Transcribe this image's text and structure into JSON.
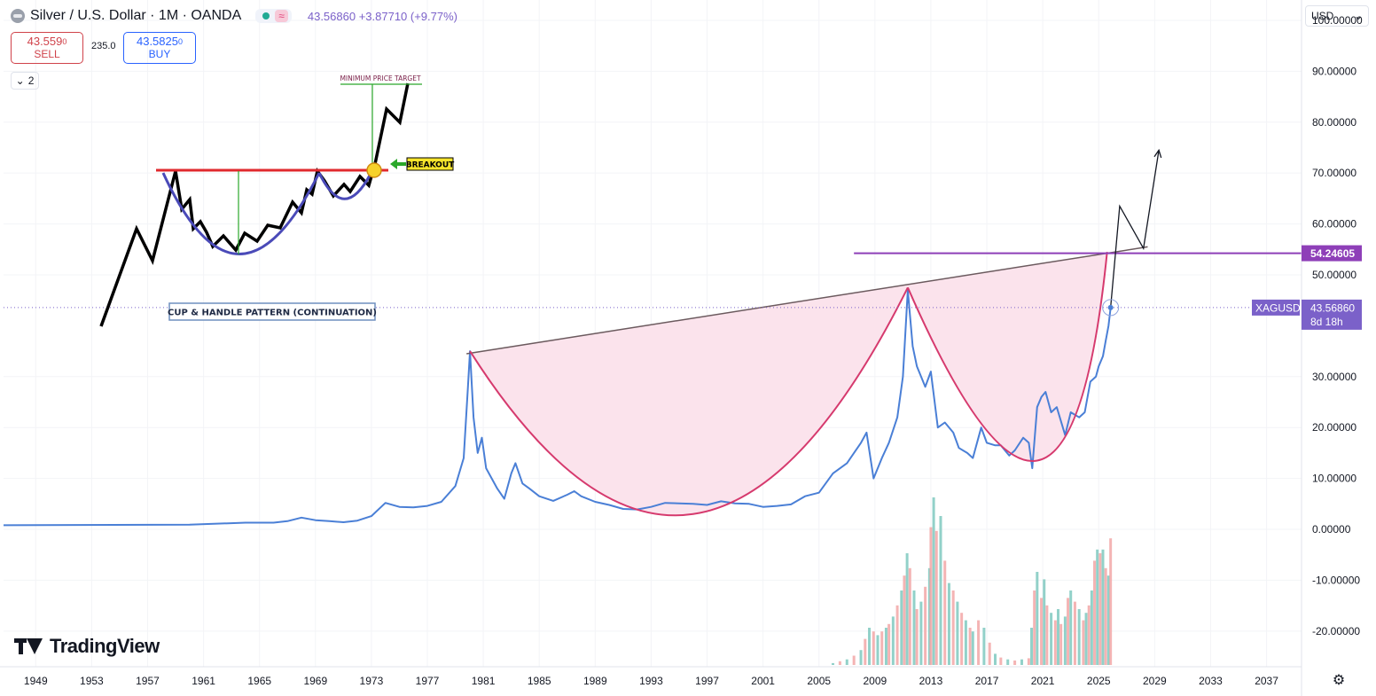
{
  "header": {
    "title": "Silver / U.S. Dollar · 1M · OANDA",
    "quote": "43.56860 +3.87710 (+9.77%)",
    "wave_icon": "≈"
  },
  "trade": {
    "sell_price": "43.559",
    "sell_price_small": "0",
    "sell_label": "SELL",
    "spread": "235.0",
    "buy_price": "43.5825",
    "buy_price_small": "0",
    "buy_label": "BUY"
  },
  "layers_count": "2",
  "currency": "USD",
  "brand": "TradingView",
  "colors": {
    "price_line": "#4a7fd6",
    "cup_curve": "#d63a6e",
    "cup_fill": "#fbe3ec",
    "resistance": "#8e3fb8",
    "trendline": "#6b5a5e",
    "volume_up": "#7fc9c0",
    "volume_down": "#f2a7a7",
    "last_price_bg": "#7b61c9"
  },
  "chart_data": {
    "type": "line",
    "symbol": "XAGUSD",
    "x_labels": [
      "1949",
      "1953",
      "1957",
      "1961",
      "1965",
      "1969",
      "1973",
      "1977",
      "1981",
      "1985",
      "1989",
      "1993",
      "1997",
      "2001",
      "2005",
      "2009",
      "2013",
      "2017",
      "2021",
      "2025",
      "2029",
      "2033",
      "2037"
    ],
    "y_ticks": [
      100,
      90,
      80,
      70,
      60,
      50,
      30,
      20,
      10,
      0,
      -10,
      -20
    ],
    "y_tick_labels": [
      "100.00000",
      "90.00000",
      "80.00000",
      "70.00000",
      "60.00000",
      "50.00000",
      "30.00000",
      "20.00000",
      "10.00000",
      "0.00000",
      "-10.00000",
      "-20.00000"
    ],
    "ylim": [
      -27,
      104
    ],
    "xlim": [
      1946.7,
      2039.5
    ],
    "series": [
      {
        "values": [
          [
            1946.7,
            0.8
          ],
          [
            1960,
            0.9
          ],
          [
            1964,
            1.3
          ],
          [
            1966,
            1.3
          ],
          [
            1967,
            1.6
          ],
          [
            1968,
            2.3
          ],
          [
            1969,
            1.8
          ],
          [
            1970,
            1.6
          ],
          [
            1971,
            1.4
          ],
          [
            1972,
            1.7
          ],
          [
            1973,
            2.6
          ],
          [
            1974,
            5.2
          ],
          [
            1975,
            4.4
          ],
          [
            1976,
            4.3
          ],
          [
            1977,
            4.6
          ],
          [
            1978,
            5.4
          ],
          [
            1979,
            8.5
          ],
          [
            1979.6,
            14
          ],
          [
            1979.9,
            28
          ],
          [
            1980.05,
            35
          ],
          [
            1980.3,
            22
          ],
          [
            1980.6,
            15
          ],
          [
            1980.9,
            18
          ],
          [
            1981.2,
            12
          ],
          [
            1981.6,
            10
          ],
          [
            1982,
            8
          ],
          [
            1982.5,
            6
          ],
          [
            1983,
            11
          ],
          [
            1983.3,
            13
          ],
          [
            1983.8,
            9
          ],
          [
            1984.3,
            8
          ],
          [
            1985,
            6.5
          ],
          [
            1986,
            5.6
          ],
          [
            1987,
            6.8
          ],
          [
            1987.5,
            7.5
          ],
          [
            1988,
            6.5
          ],
          [
            1989,
            5.4
          ],
          [
            1990,
            4.8
          ],
          [
            1991,
            4
          ],
          [
            1992,
            3.9
          ],
          [
            1993,
            4.4
          ],
          [
            1994,
            5.2
          ],
          [
            1995,
            5.1
          ],
          [
            1996,
            5
          ],
          [
            1997,
            4.8
          ],
          [
            1998,
            5.5
          ],
          [
            1999,
            5.1
          ],
          [
            2000,
            5
          ],
          [
            2001,
            4.4
          ],
          [
            2002,
            4.6
          ],
          [
            2003,
            4.9
          ],
          [
            2004,
            6.5
          ],
          [
            2005,
            7.2
          ],
          [
            2006,
            11
          ],
          [
            2007,
            13
          ],
          [
            2008,
            17
          ],
          [
            2008.4,
            19
          ],
          [
            2008.9,
            10
          ],
          [
            2009.5,
            14
          ],
          [
            2010,
            17
          ],
          [
            2010.6,
            22
          ],
          [
            2011,
            30
          ],
          [
            2011.35,
            47
          ],
          [
            2011.7,
            36
          ],
          [
            2012,
            32
          ],
          [
            2012.6,
            28
          ],
          [
            2013,
            31
          ],
          [
            2013.5,
            20
          ],
          [
            2014,
            21
          ],
          [
            2014.6,
            19
          ],
          [
            2015,
            16
          ],
          [
            2015.6,
            15
          ],
          [
            2016,
            14
          ],
          [
            2016.6,
            20
          ],
          [
            2017,
            17
          ],
          [
            2017.6,
            16.5
          ],
          [
            2018,
            16.5
          ],
          [
            2018.6,
            14.5
          ],
          [
            2019,
            15.5
          ],
          [
            2019.6,
            18
          ],
          [
            2020,
            17
          ],
          [
            2020.25,
            12
          ],
          [
            2020.6,
            24
          ],
          [
            2020.9,
            26
          ],
          [
            2021.2,
            27
          ],
          [
            2021.6,
            23
          ],
          [
            2022,
            24
          ],
          [
            2022.6,
            18.5
          ],
          [
            2023,
            23
          ],
          [
            2023.6,
            22
          ],
          [
            2024,
            23
          ],
          [
            2024.4,
            29
          ],
          [
            2024.8,
            30
          ],
          [
            2025,
            32
          ],
          [
            2025.3,
            34
          ],
          [
            2025.5,
            37
          ],
          [
            2025.7,
            40
          ],
          [
            2025.85,
            43.57
          ]
        ]
      }
    ],
    "volume_bars": [
      [
        2006,
        0.5
      ],
      [
        2006.5,
        1
      ],
      [
        2007,
        1.5
      ],
      [
        2007.5,
        2.5
      ],
      [
        2008,
        4
      ],
      [
        2008.3,
        7
      ],
      [
        2008.6,
        10
      ],
      [
        2008.9,
        9
      ],
      [
        2009.2,
        8
      ],
      [
        2009.5,
        9
      ],
      [
        2009.8,
        10
      ],
      [
        2010,
        11
      ],
      [
        2010.3,
        13
      ],
      [
        2010.6,
        16
      ],
      [
        2010.9,
        20
      ],
      [
        2011.1,
        24
      ],
      [
        2011.3,
        30
      ],
      [
        2011.5,
        26
      ],
      [
        2011.8,
        20
      ],
      [
        2012,
        15
      ],
      [
        2012.3,
        17
      ],
      [
        2012.6,
        21
      ],
      [
        2012.9,
        26
      ],
      [
        2013,
        37
      ],
      [
        2013.2,
        45
      ],
      [
        2013.4,
        36
      ],
      [
        2013.7,
        40
      ],
      [
        2014,
        28
      ],
      [
        2014.3,
        22
      ],
      [
        2014.6,
        20
      ],
      [
        2014.9,
        17
      ],
      [
        2015.2,
        14
      ],
      [
        2015.5,
        12
      ],
      [
        2015.8,
        10
      ],
      [
        2016,
        9
      ],
      [
        2016.4,
        12
      ],
      [
        2016.8,
        10
      ],
      [
        2017.2,
        6
      ],
      [
        2017.6,
        3
      ],
      [
        2018,
        2
      ],
      [
        2018.5,
        1.5
      ],
      [
        2019,
        1.2
      ],
      [
        2019.5,
        1.5
      ],
      [
        2020,
        1.8
      ],
      [
        2020.2,
        10
      ],
      [
        2020.4,
        20
      ],
      [
        2020.6,
        25
      ],
      [
        2020.9,
        18
      ],
      [
        2021.1,
        23
      ],
      [
        2021.3,
        16
      ],
      [
        2021.6,
        14
      ],
      [
        2021.9,
        12
      ],
      [
        2022.1,
        15
      ],
      [
        2022.3,
        11
      ],
      [
        2022.6,
        13
      ],
      [
        2022.8,
        18
      ],
      [
        2023,
        20
      ],
      [
        2023.3,
        17
      ],
      [
        2023.6,
        15
      ],
      [
        2023.9,
        12
      ],
      [
        2024.1,
        14
      ],
      [
        2024.3,
        16
      ],
      [
        2024.5,
        20
      ],
      [
        2024.7,
        28
      ],
      [
        2024.9,
        31
      ],
      [
        2025.1,
        30
      ],
      [
        2025.3,
        31
      ],
      [
        2025.5,
        26
      ],
      [
        2025.7,
        24
      ],
      [
        2025.85,
        34
      ]
    ],
    "resistance_level": 54.24605,
    "resistance_label": "54.24605",
    "last_price": 43.5686,
    "last_price_label": "43.56860",
    "countdown": "8d 18h",
    "trendline": [
      [
        1979.8,
        34.5
      ],
      [
        2028.5,
        55.5
      ]
    ],
    "cup1": {
      "start": [
        1980.05,
        35
      ],
      "bottom": [
        1996,
        3
      ],
      "end": [
        2011.35,
        47.5
      ]
    },
    "cup2": {
      "start": [
        2011.35,
        47.5
      ],
      "bottom": [
        2020.6,
        13.5
      ],
      "end": [
        2025.6,
        54.5
      ]
    },
    "projection": [
      [
        2025.85,
        43.57
      ],
      [
        2026.5,
        63.5
      ],
      [
        2028.2,
        55.2
      ],
      [
        2029.3,
        74.5
      ]
    ],
    "inset_sketch": {
      "title": "CUP & HANDLE PATTERN (CONTINUATION)",
      "breakout_label": "BREAKOUT",
      "target_label": "MINIMUM PRICE TARGET"
    }
  }
}
